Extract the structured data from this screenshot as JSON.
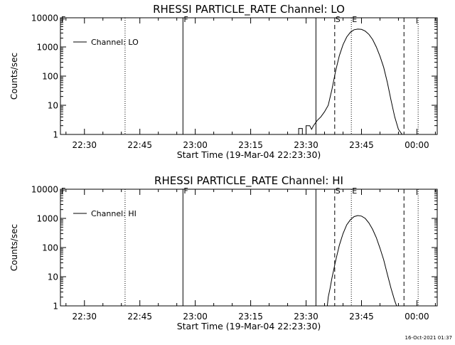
{
  "colors": {
    "background": "#ffffff",
    "foreground": "#000000"
  },
  "footer_timestamp": "16-Oct-2021 01:37",
  "chart_data": [
    {
      "type": "line",
      "title": "RHESSI PARTICLE_RATE Channel: LO",
      "xlabel": "Start Time (19-Mar-04 22:23:30)",
      "ylabel": "Counts/sec",
      "yscale": "log",
      "xlim": [
        "22:23:30",
        "00:05:30"
      ],
      "ylim": [
        1,
        10000
      ],
      "xtick_labels": [
        "22:30",
        "22:45",
        "23:00",
        "23:15",
        "23:30",
        "23:45",
        "00:00"
      ],
      "ytick_labels": [
        "1",
        "10",
        "100",
        "1000",
        "10000"
      ],
      "grid": false,
      "legend": {
        "position": "top-left",
        "entries": [
          "Channel: LO"
        ]
      },
      "series": [
        {
          "name": "Channel: LO",
          "x": [
            "23:28:00",
            "23:28:00",
            "23:29:00",
            "23:29:00",
            "23:30:00",
            "23:30:00",
            "23:31:00",
            "23:31:30",
            "23:32:00",
            "23:33:00",
            "23:34:00",
            "23:35:00",
            "23:36:00",
            "23:37:00",
            "23:38:00",
            "23:39:00",
            "23:40:00",
            "23:41:00",
            "23:42:00",
            "23:43:00",
            "23:44:00",
            "23:45:00",
            "23:46:00",
            "23:47:00",
            "23:48:00",
            "23:49:00",
            "23:50:00",
            "23:51:00",
            "23:52:00",
            "23:53:00",
            "23:54:00",
            "23:55:00",
            "23:56:00",
            "23:57:00"
          ],
          "y": [
            1,
            1.6,
            1.6,
            1,
            1,
            2,
            2,
            1.5,
            2,
            3,
            4,
            6,
            10,
            35,
            150,
            500,
            1200,
            2200,
            3200,
            3900,
            4100,
            4000,
            3500,
            2700,
            1800,
            1000,
            480,
            200,
            60,
            15,
            4,
            1.5,
            1,
            1
          ]
        }
      ],
      "markers": [
        {
          "label": "F",
          "x": "22:56:40",
          "style": "solid"
        },
        {
          "label": "",
          "x": "22:41:00",
          "style": "dotted"
        },
        {
          "label": "",
          "x": "23:32:40",
          "style": "solid"
        },
        {
          "label": "S",
          "x": "23:37:45",
          "style": "dashed"
        },
        {
          "label": "E",
          "x": "23:42:15",
          "style": "dotted"
        },
        {
          "label": "",
          "x": "23:56:30",
          "style": "dashed"
        },
        {
          "label": "",
          "x": "00:00:20",
          "style": "dotted"
        }
      ]
    },
    {
      "type": "line",
      "title": "RHESSI PARTICLE_RATE Channel: HI",
      "xlabel": "Start Time (19-Mar-04 22:23:30)",
      "ylabel": "Counts/sec",
      "yscale": "log",
      "xlim": [
        "22:23:30",
        "00:05:30"
      ],
      "ylim": [
        1,
        10000
      ],
      "xtick_labels": [
        "22:30",
        "22:45",
        "23:00",
        "23:15",
        "23:30",
        "23:45",
        "00:00"
      ],
      "ytick_labels": [
        "1",
        "10",
        "100",
        "1000",
        "10000"
      ],
      "grid": false,
      "legend": {
        "position": "top-left",
        "entries": [
          "Channel: HI"
        ]
      },
      "series": [
        {
          "name": "Channel: HI",
          "x": [
            "23:35:45",
            "23:36:00",
            "23:36:30",
            "23:37:00",
            "23:38:00",
            "23:39:00",
            "23:40:00",
            "23:41:00",
            "23:42:00",
            "23:43:00",
            "23:44:00",
            "23:45:00",
            "23:46:00",
            "23:47:00",
            "23:48:00",
            "23:49:00",
            "23:50:00",
            "23:51:00",
            "23:52:00",
            "23:53:00",
            "23:54:00",
            "23:54:30"
          ],
          "y": [
            1,
            2,
            4,
            9,
            35,
            120,
            300,
            600,
            900,
            1150,
            1250,
            1200,
            1000,
            700,
            420,
            220,
            95,
            38,
            12,
            4,
            1.5,
            1
          ]
        }
      ],
      "markers": [
        {
          "label": "F",
          "x": "22:56:40",
          "style": "solid"
        },
        {
          "label": "",
          "x": "22:41:00",
          "style": "dotted"
        },
        {
          "label": "",
          "x": "23:32:40",
          "style": "solid"
        },
        {
          "label": "S",
          "x": "23:37:45",
          "style": "dashed"
        },
        {
          "label": "E",
          "x": "23:42:15",
          "style": "dotted"
        },
        {
          "label": "",
          "x": "23:56:30",
          "style": "dashed"
        },
        {
          "label": "",
          "x": "00:00:20",
          "style": "dotted"
        }
      ]
    }
  ]
}
